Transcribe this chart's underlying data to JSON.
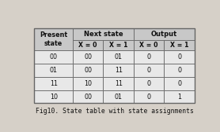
{
  "title": "Fig10. State table with state assignments",
  "col_headers_row2": [
    "X = 0",
    "X = 1",
    "X = 0",
    "X = 1"
  ],
  "rows": [
    [
      "00",
      "00",
      "01",
      "0",
      "0"
    ],
    [
      "01",
      "00",
      "11",
      "0",
      "0"
    ],
    [
      "11",
      "10",
      "11",
      "0",
      "0"
    ],
    [
      "10",
      "00",
      "01",
      "0",
      "1"
    ]
  ],
  "header_bg": "#c8c8c8",
  "data_bg": "#e8e8e8",
  "border_color": "#666666",
  "text_color": "#111111",
  "title_color": "#111111",
  "fig_bg": "#d6d0c8",
  "figsize": [
    2.78,
    1.68
  ],
  "dpi": 100
}
